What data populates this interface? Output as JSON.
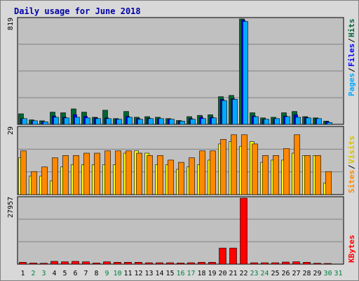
{
  "title": "Daily usage for June 2018",
  "colors": {
    "frame": "#D8D8D8",
    "plot": "#C0C0C0",
    "title": "#0000AA",
    "hits": "#006633",
    "files": "#0000FF",
    "pages": "#00AAFF",
    "visits": "#FFFF00",
    "sites": "#FF8800",
    "kbytes": "#FF0000",
    "weekend_label": "#008040"
  },
  "chart_data": [
    {
      "type": "bar",
      "name": "hits-files-pages",
      "ymax_label": "819",
      "ylim": [
        0,
        819
      ],
      "legend": [
        "Pages",
        "Files",
        "Hits"
      ],
      "x": [
        "1",
        "2",
        "3",
        "4",
        "5",
        "6",
        "7",
        "8",
        "9",
        "10",
        "11",
        "12",
        "13",
        "14",
        "15",
        "16",
        "17",
        "18",
        "19",
        "20",
        "21",
        "22",
        "23",
        "24",
        "25",
        "26",
        "27",
        "28",
        "29",
        "30",
        "31"
      ],
      "series": [
        {
          "name": "Hits",
          "values": [
            82,
            35,
            28,
            95,
            90,
            120,
            95,
            55,
            110,
            45,
            100,
            55,
            60,
            55,
            45,
            30,
            60,
            70,
            75,
            215,
            225,
            819,
            90,
            50,
            55,
            90,
            100,
            60,
            50,
            25,
            0
          ]
        },
        {
          "name": "Files",
          "values": [
            45,
            28,
            20,
            65,
            55,
            75,
            62,
            50,
            50,
            42,
            62,
            45,
            48,
            45,
            40,
            25,
            45,
            55,
            55,
            195,
            200,
            810,
            65,
            40,
            45,
            65,
            75,
            55,
            45,
            20,
            0
          ]
        },
        {
          "name": "Pages",
          "values": [
            45,
            28,
            20,
            55,
            50,
            55,
            50,
            45,
            45,
            40,
            55,
            40,
            45,
            45,
            40,
            25,
            40,
            45,
            50,
            185,
            195,
            800,
            60,
            40,
            45,
            60,
            55,
            50,
            45,
            15,
            0
          ]
        }
      ]
    },
    {
      "type": "bar",
      "name": "visits-sites",
      "ymax_label": "29",
      "ylim": [
        0,
        29
      ],
      "legend": [
        "Sites",
        "Visits"
      ],
      "x": [
        "1",
        "2",
        "3",
        "4",
        "5",
        "6",
        "7",
        "8",
        "9",
        "10",
        "11",
        "12",
        "13",
        "14",
        "15",
        "16",
        "17",
        "18",
        "19",
        "20",
        "21",
        "22",
        "23",
        "24",
        "25",
        "26",
        "27",
        "28",
        "29",
        "30",
        "31"
      ],
      "series": [
        {
          "name": "Visits",
          "values": [
            16,
            8,
            8,
            6,
            12,
            13,
            13,
            13,
            13,
            13,
            18,
            19,
            18,
            13,
            13,
            11,
            12,
            13,
            15,
            22,
            23,
            21,
            23,
            14,
            15,
            15,
            18,
            17,
            17,
            5,
            0
          ]
        },
        {
          "name": "Sites",
          "values": [
            19,
            10,
            12,
            16,
            17,
            17,
            18,
            18,
            19,
            19,
            19,
            18,
            17,
            17,
            15,
            14,
            16,
            19,
            19,
            24,
            26,
            26,
            22,
            17,
            17,
            20,
            26,
            17,
            17,
            10,
            0
          ]
        }
      ]
    },
    {
      "type": "bar",
      "name": "kbytes",
      "ymax_label": "27957",
      "ylim": [
        0,
        27957
      ],
      "legend": [
        "KBytes"
      ],
      "x": [
        "1",
        "2",
        "3",
        "4",
        "5",
        "6",
        "7",
        "8",
        "9",
        "10",
        "11",
        "12",
        "13",
        "14",
        "15",
        "16",
        "17",
        "18",
        "19",
        "20",
        "21",
        "22",
        "23",
        "24",
        "25",
        "26",
        "27",
        "28",
        "29",
        "30",
        "31"
      ],
      "series": [
        {
          "name": "KBytes",
          "values": [
            800,
            500,
            400,
            1200,
            1000,
            1200,
            1000,
            500,
            1000,
            800,
            800,
            800,
            600,
            600,
            600,
            500,
            600,
            800,
            800,
            6800,
            6800,
            27957,
            600,
            600,
            600,
            900,
            1000,
            800,
            400,
            300,
            0
          ]
        }
      ]
    }
  ],
  "x_labels": [
    "1",
    "2",
    "3",
    "4",
    "5",
    "6",
    "7",
    "8",
    "9",
    "10",
    "11",
    "12",
    "13",
    "14",
    "15",
    "16",
    "17",
    "18",
    "19",
    "20",
    "21",
    "22",
    "23",
    "24",
    "25",
    "26",
    "27",
    "28",
    "29",
    "30",
    "31"
  ],
  "weekend_days": [
    2,
    3,
    9,
    10,
    16,
    17,
    23,
    24,
    30,
    31
  ]
}
